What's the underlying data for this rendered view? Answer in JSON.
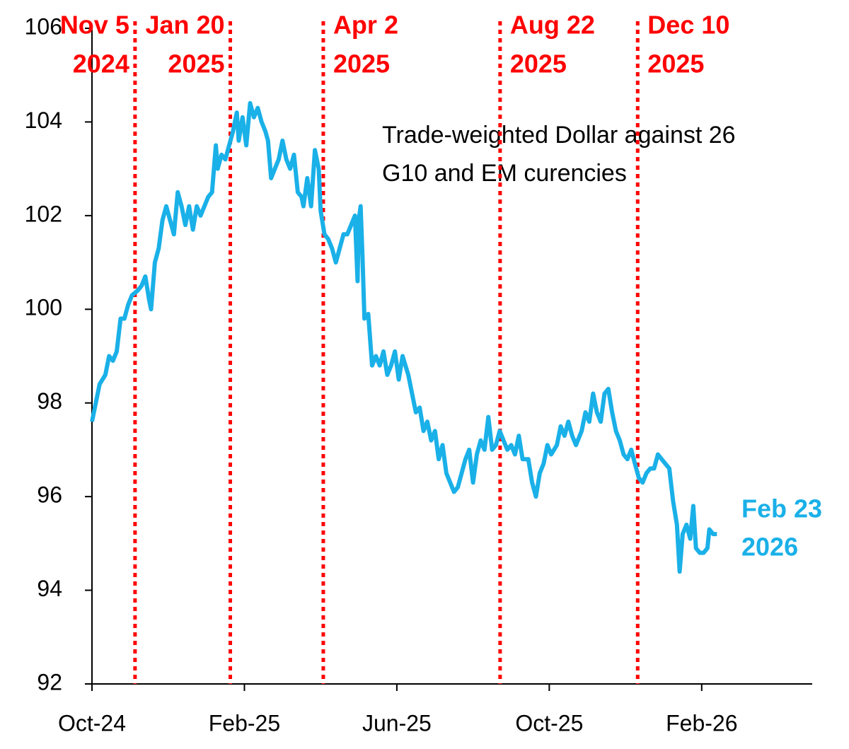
{
  "chart_data": {
    "type": "line",
    "title": [
      "Trade-weighted Dollar against 26",
      "G10 and EM curencies"
    ],
    "end_label": [
      "Feb 23",
      "2026"
    ],
    "color": "#1ab0e8",
    "event_color": "#ff0000",
    "events": [
      {
        "x": 1.13,
        "label": [
          "Nov 5",
          "2024"
        ]
      },
      {
        "x": 3.63,
        "label": [
          "Jan 20",
          "2025"
        ]
      },
      {
        "x": 6.07,
        "label": [
          "Apr 2",
          "2025"
        ]
      },
      {
        "x": 10.71,
        "label": [
          "Aug 22",
          "2025"
        ]
      },
      {
        "x": 14.32,
        "label": [
          "Dec 10",
          "2025"
        ]
      }
    ],
    "x": [
      0,
      0.1,
      0.2,
      0.35,
      0.45,
      0.55,
      0.65,
      0.75,
      0.85,
      0.95,
      1.05,
      1.2,
      1.3,
      1.4,
      1.5,
      1.55,
      1.65,
      1.75,
      1.85,
      1.95,
      2.05,
      2.15,
      2.25,
      2.35,
      2.45,
      2.55,
      2.65,
      2.75,
      2.85,
      2.95,
      3.05,
      3.15,
      3.25,
      3.3,
      3.4,
      3.5,
      3.6,
      3.7,
      3.8,
      3.85,
      3.95,
      4.05,
      4.15,
      4.25,
      4.35,
      4.45,
      4.55,
      4.62,
      4.7,
      4.8,
      4.9,
      5.0,
      5.1,
      5.2,
      5.3,
      5.4,
      5.5,
      5.55,
      5.65,
      5.75,
      5.85,
      5.95,
      6.0,
      6.1,
      6.2,
      6.3,
      6.4,
      6.5,
      6.6,
      6.7,
      6.8,
      6.9,
      6.97,
      7.0,
      7.05,
      7.1,
      7.15,
      7.25,
      7.35,
      7.45,
      7.55,
      7.65,
      7.75,
      7.85,
      7.95,
      8.05,
      8.15,
      8.3,
      8.4,
      8.5,
      8.6,
      8.7,
      8.8,
      8.9,
      9.0,
      9.1,
      9.2,
      9.3,
      9.4,
      9.5,
      9.6,
      9.7,
      9.8,
      9.9,
      10.0,
      10.1,
      10.2,
      10.3,
      10.4,
      10.5,
      10.6,
      10.7,
      10.8,
      10.9,
      11.0,
      11.1,
      11.2,
      11.3,
      11.45,
      11.55,
      11.65,
      11.75,
      11.85,
      11.95,
      12.05,
      12.2,
      12.3,
      12.4,
      12.5,
      12.6,
      12.7,
      12.85,
      12.95,
      13.05,
      13.15,
      13.25,
      13.35,
      13.45,
      13.55,
      13.65,
      13.75,
      13.85,
      13.95,
      14.05,
      14.15,
      14.25,
      14.35,
      14.45,
      14.55,
      14.65,
      14.75,
      14.85,
      14.95,
      15.05,
      15.15,
      15.25,
      15.35,
      15.42,
      15.5,
      15.6,
      15.7,
      15.78,
      15.85,
      15.95,
      16.05,
      16.15,
      16.2,
      16.3,
      16.4
    ],
    "values": [
      97.6,
      98.0,
      98.4,
      98.6,
      99.0,
      98.9,
      99.1,
      99.8,
      99.8,
      100.1,
      100.3,
      100.4,
      100.5,
      100.7,
      100.2,
      100.0,
      101.0,
      101.3,
      101.9,
      102.2,
      101.9,
      101.6,
      102.5,
      102.2,
      101.8,
      102.2,
      101.7,
      102.2,
      102.0,
      102.2,
      102.4,
      102.5,
      103.5,
      103.0,
      103.3,
      103.2,
      103.5,
      103.8,
      104.2,
      103.6,
      104.1,
      103.5,
      104.4,
      104.1,
      104.3,
      104.0,
      103.8,
      103.6,
      102.8,
      103.0,
      103.2,
      103.6,
      103.2,
      103.0,
      103.3,
      102.5,
      102.4,
      102.2,
      102.8,
      102.2,
      103.4,
      103.0,
      102.1,
      101.6,
      101.5,
      101.3,
      101.0,
      101.3,
      101.6,
      101.6,
      101.8,
      102.0,
      100.6,
      101.9,
      102.2,
      101.1,
      99.8,
      99.9,
      98.8,
      99.0,
      98.8,
      99.1,
      98.6,
      98.8,
      99.1,
      98.5,
      99.0,
      98.6,
      98.2,
      97.8,
      97.9,
      97.4,
      97.6,
      97.2,
      97.4,
      96.8,
      97.1,
      96.5,
      96.3,
      96.1,
      96.2,
      96.5,
      96.8,
      97.0,
      96.3,
      96.9,
      97.2,
      97.0,
      97.7,
      97.0,
      97.1,
      97.4,
      97.2,
      97.0,
      97.1,
      96.9,
      97.3,
      96.8,
      96.8,
      96.3,
      96.0,
      96.5,
      96.7,
      97.1,
      96.9,
      97.1,
      97.5,
      97.3,
      97.6,
      97.3,
      97.1,
      97.4,
      97.8,
      97.6,
      98.2,
      97.8,
      97.6,
      98.2,
      98.3,
      97.8,
      97.4,
      97.2,
      96.9,
      96.8,
      97.0,
      96.7,
      96.4,
      96.3,
      96.5,
      96.6,
      96.6,
      96.9,
      96.8,
      96.7,
      96.6,
      95.9,
      95.4,
      94.4,
      95.2,
      95.4,
      95.1,
      95.8,
      94.9,
      94.8,
      94.8,
      94.9,
      95.3,
      95.2,
      95.2
    ],
    "xlim": [
      0,
      18.9
    ],
    "xticks": [
      {
        "value": 0,
        "label": "Oct-24"
      },
      {
        "value": 4,
        "label": "Feb-25"
      },
      {
        "value": 8,
        "label": "Jun-25"
      },
      {
        "value": 12,
        "label": "Oct-25"
      },
      {
        "value": 16,
        "label": "Feb-26"
      }
    ],
    "ylim": [
      92,
      106
    ],
    "yticks": [
      92,
      94,
      96,
      98,
      100,
      102,
      104,
      106
    ]
  }
}
